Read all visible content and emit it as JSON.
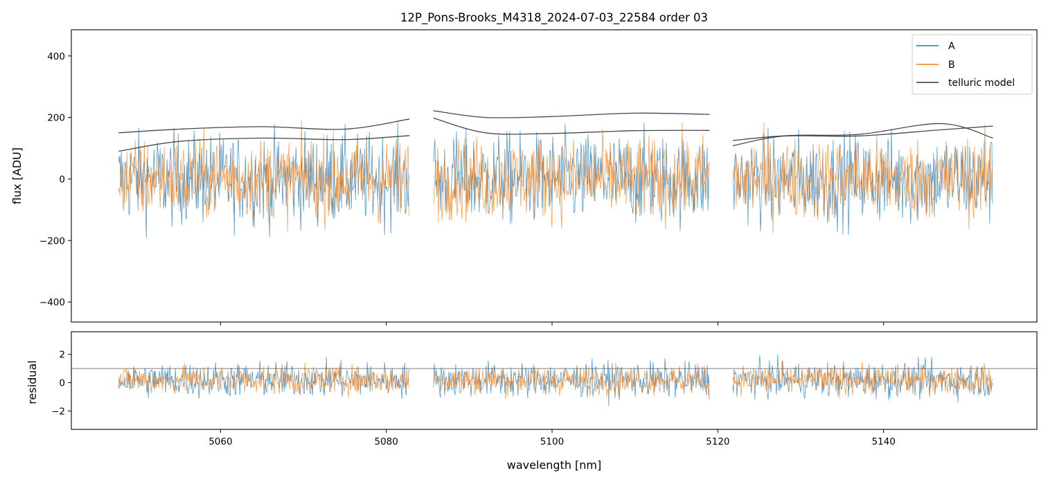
{
  "figure": {
    "title": "12P_Pons-Brooks_M4318_2024-07-03_22584  order 03",
    "xlabel": "wavelength [nm]"
  },
  "chart_data": [
    {
      "type": "line",
      "panel": "top",
      "ylabel": "flux [ADU]",
      "xlim": [
        5042,
        5158.5
      ],
      "ylim": [
        -465,
        485
      ],
      "xticks": [
        5060,
        5080,
        5100,
        5120,
        5140
      ],
      "yticks": [
        -400,
        -200,
        0,
        200,
        400
      ],
      "ytick_labels": [
        "−400",
        "−200",
        "0",
        "200",
        "400"
      ],
      "xtick_labels_shown": false,
      "legend": {
        "placement": "top-right",
        "entries": [
          {
            "label": "A",
            "color": "#1f77b4"
          },
          {
            "label": "B",
            "color": "#ff7f0e"
          },
          {
            "label": "telluric model",
            "color": "#333333"
          }
        ]
      },
      "segments": [
        {
          "x_range": [
            5047.7,
            5082.8
          ]
        },
        {
          "x_range": [
            5085.7,
            5119.0
          ]
        },
        {
          "x_range": [
            5121.8,
            5153.2
          ]
        }
      ],
      "series": [
        {
          "name": "A",
          "color": "#1f77b4",
          "noise_amplitude": 190,
          "center": 0
        },
        {
          "name": "B",
          "color": "#ff7f0e",
          "noise_amplitude": 170,
          "center": 0
        },
        {
          "name": "telluric model",
          "color": "#333333",
          "curves": [
            {
              "x": [
                5047.7,
                5055,
                5065,
                5075,
                5082.8
              ],
              "y": [
                150,
                162,
                170,
                162,
                195
              ]
            },
            {
              "x": [
                5047.7,
                5055,
                5065,
                5075,
                5082.8
              ],
              "y": [
                90,
                122,
                133,
                128,
                141
              ]
            },
            {
              "x": [
                5085.7,
                5092,
                5100,
                5110,
                5119.0
              ],
              "y": [
                222,
                200,
                203,
                214,
                210
              ]
            },
            {
              "x": [
                5085.7,
                5092,
                5100,
                5110,
                5119.0
              ],
              "y": [
                198,
                150,
                148,
                157,
                158
              ]
            },
            {
              "x": [
                5121.8,
                5128,
                5137,
                5147,
                5153.2
              ],
              "y": [
                125,
                140,
                140,
                160,
                172
              ]
            },
            {
              "x": [
                5121.8,
                5128,
                5137,
                5147,
                5153.2
              ],
              "y": [
                108,
                140,
                145,
                180,
                133
              ]
            }
          ]
        }
      ]
    },
    {
      "type": "line",
      "panel": "bottom",
      "ylabel": "residual",
      "xlim": [
        5042,
        5158.5
      ],
      "ylim": [
        -3.3,
        3.6
      ],
      "xticks": [
        5060,
        5080,
        5100,
        5120,
        5140
      ],
      "xtick_labels": [
        "5060",
        "5080",
        "5100",
        "5120",
        "5140"
      ],
      "yticks": [
        -2,
        0,
        2
      ],
      "ytick_labels": [
        "−2",
        "0",
        "2"
      ],
      "reference_line": {
        "y": 1,
        "color": "#555555"
      },
      "series": [
        {
          "name": "A",
          "color": "#1f77b4",
          "noise_amplitude": 1.6,
          "center": 0.2
        },
        {
          "name": "B",
          "color": "#ff7f0e",
          "noise_amplitude": 1.3,
          "center": 0.2
        }
      ]
    }
  ]
}
